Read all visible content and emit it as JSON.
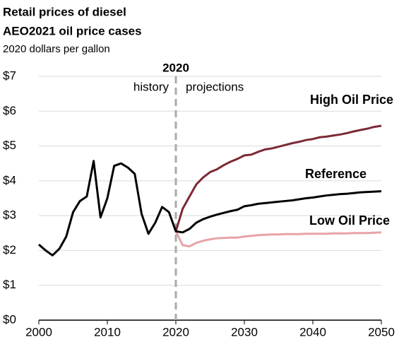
{
  "chart_data": {
    "type": "line",
    "title": "Retail prices of diesel",
    "subtitle": "AEO2021 oil price cases",
    "y_label": "2020 dollars per gallon",
    "annotations": [
      "2020",
      "history",
      "projections"
    ],
    "vline": 2020,
    "x": [
      2000,
      2001,
      2002,
      2003,
      2004,
      2005,
      2006,
      2007,
      2008,
      2009,
      2010,
      2011,
      2012,
      2013,
      2014,
      2015,
      2016,
      2017,
      2018,
      2019,
      2020,
      2021,
      2022,
      2023,
      2024,
      2025,
      2026,
      2027,
      2028,
      2029,
      2030,
      2031,
      2032,
      2033,
      2034,
      2035,
      2036,
      2037,
      2038,
      2039,
      2040,
      2041,
      2042,
      2043,
      2044,
      2045,
      2046,
      2047,
      2048,
      2049,
      2050
    ],
    "series": [
      {
        "name": "High Oil Price",
        "color": "#7b2a35",
        "values": [
          null,
          null,
          null,
          null,
          null,
          null,
          null,
          null,
          null,
          null,
          null,
          null,
          null,
          null,
          null,
          null,
          null,
          null,
          null,
          null,
          2.55,
          3.2,
          3.55,
          3.9,
          4.1,
          4.25,
          4.33,
          4.45,
          4.55,
          4.63,
          4.73,
          4.75,
          4.83,
          4.9,
          4.93,
          4.98,
          5.03,
          5.08,
          5.12,
          5.17,
          5.2,
          5.25,
          5.27,
          5.3,
          5.33,
          5.37,
          5.42,
          5.46,
          5.5,
          5.55,
          5.58
        ]
      },
      {
        "name": "Reference",
        "color": "#000000",
        "values": [
          2.17,
          2.0,
          1.86,
          2.05,
          2.4,
          3.1,
          3.42,
          3.55,
          4.57,
          2.95,
          3.5,
          4.43,
          4.5,
          4.38,
          4.2,
          3.05,
          2.48,
          2.8,
          3.25,
          3.1,
          2.55,
          2.52,
          2.62,
          2.8,
          2.9,
          2.97,
          3.03,
          3.08,
          3.13,
          3.17,
          3.27,
          3.3,
          3.34,
          3.36,
          3.38,
          3.4,
          3.42,
          3.44,
          3.47,
          3.5,
          3.52,
          3.55,
          3.58,
          3.6,
          3.62,
          3.63,
          3.65,
          3.67,
          3.68,
          3.69,
          3.7
        ]
      },
      {
        "name": "Low Oil Price",
        "color": "#e8a3a8",
        "values": [
          null,
          null,
          null,
          null,
          null,
          null,
          null,
          null,
          null,
          null,
          null,
          null,
          null,
          null,
          null,
          null,
          null,
          null,
          null,
          null,
          2.55,
          2.15,
          2.12,
          2.22,
          2.28,
          2.32,
          2.35,
          2.36,
          2.37,
          2.37,
          2.4,
          2.42,
          2.44,
          2.45,
          2.46,
          2.46,
          2.47,
          2.47,
          2.47,
          2.48,
          2.48,
          2.48,
          2.48,
          2.49,
          2.49,
          2.49,
          2.5,
          2.5,
          2.5,
          2.51,
          2.52
        ]
      }
    ],
    "xlim": [
      2000,
      2050
    ],
    "xticks": [
      2000,
      2010,
      2020,
      2030,
      2040,
      2050
    ],
    "ylim": [
      0,
      7
    ],
    "yticks": [
      {
        "value": 0,
        "label": "$0"
      },
      {
        "value": 1,
        "label": "$1"
      },
      {
        "value": 2,
        "label": "$2"
      },
      {
        "value": 3,
        "label": "$3"
      },
      {
        "value": 4,
        "label": "$4"
      },
      {
        "value": 5,
        "label": "$5"
      },
      {
        "value": 6,
        "label": "$6"
      },
      {
        "value": 7,
        "label": "$7"
      }
    ],
    "grid": true
  }
}
